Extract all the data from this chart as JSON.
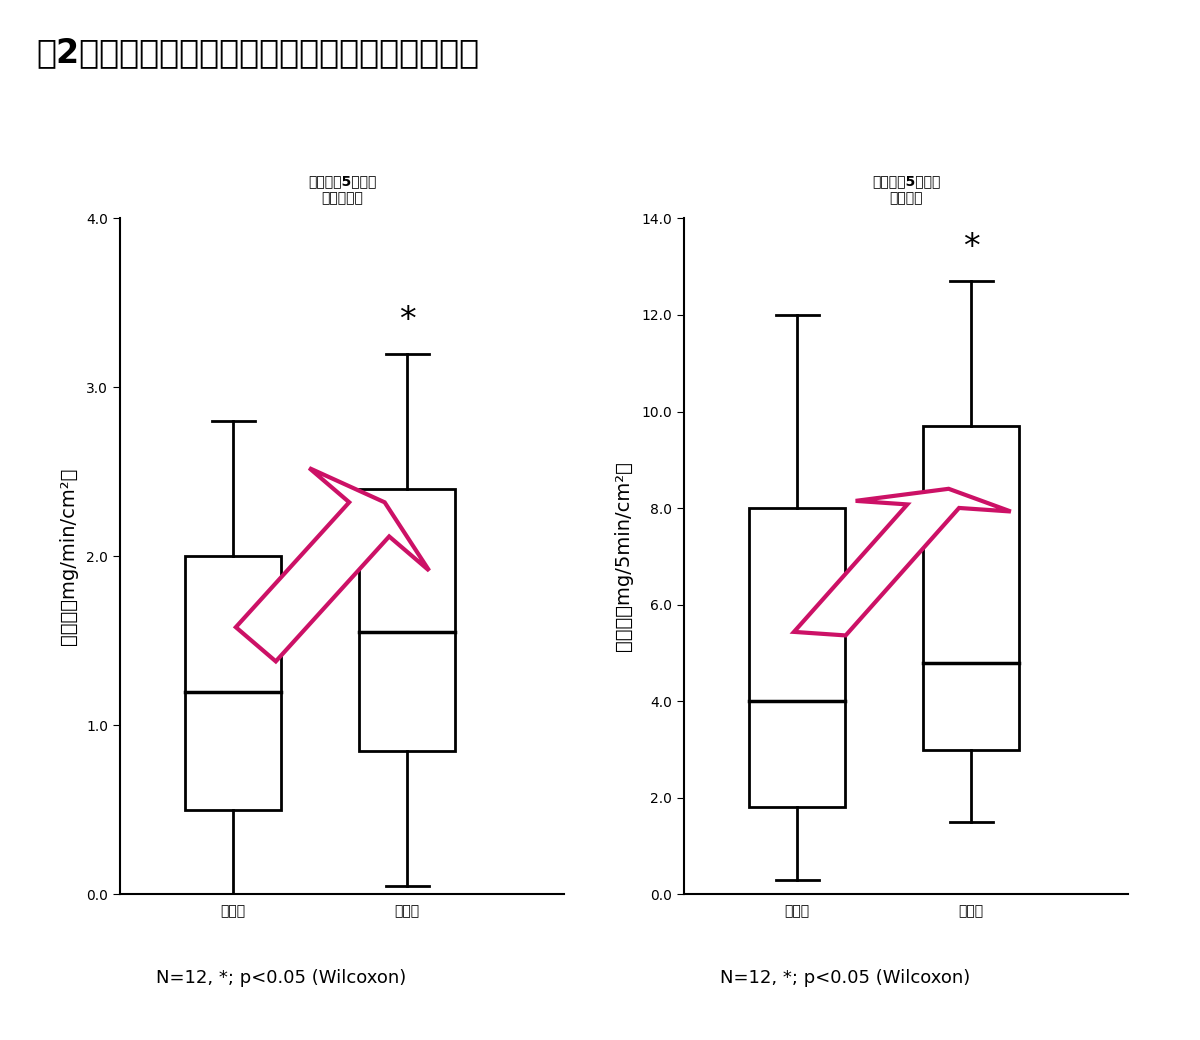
{
  "title": "図2　運動（歩行）終了前後のワキ発汗量の比較",
  "left_title_line1": "歩行前後5分間の",
  "left_title_line2": "最大発汗量",
  "right_title_line1": "歩行前後5分間の",
  "right_title_line2": "総発汗量",
  "left_ylabel": "発汗量（mg/min/cm²）",
  "right_ylabel": "発汗量（mg/5min/cm²）",
  "left_categories": [
    "歩行中",
    "歩行後"
  ],
  "right_categories": [
    "歩行中",
    "歩行後"
  ],
  "left_box1": {
    "whisker_low": 0.0,
    "q1": 0.5,
    "median": 1.2,
    "q3": 2.0,
    "whisker_high": 2.8
  },
  "left_box2": {
    "whisker_low": 0.05,
    "q1": 0.85,
    "median": 1.55,
    "q3": 2.4,
    "whisker_high": 3.2
  },
  "right_box1": {
    "whisker_low": 0.3,
    "q1": 1.8,
    "median": 4.0,
    "q3": 8.0,
    "whisker_high": 12.0
  },
  "right_box2": {
    "whisker_low": 1.5,
    "q1": 3.0,
    "median": 4.8,
    "q3": 9.7,
    "whisker_high": 12.7
  },
  "left_ylim": [
    0.0,
    4.0
  ],
  "right_ylim": [
    0.0,
    14.0
  ],
  "left_yticks": [
    0.0,
    1.0,
    2.0,
    3.0,
    4.0
  ],
  "right_yticks": [
    0.0,
    2.0,
    4.0,
    6.0,
    8.0,
    10.0,
    12.0,
    14.0
  ],
  "footnote": "N=12, *; p<0.05 (Wilcoxon)",
  "arrow_color": "#CC1166",
  "box_color": "#FFFFFF",
  "box_edge_color": "#000000",
  "background_color": "#FFFFFF",
  "title_fontsize": 24,
  "subtitle_fontsize": 20,
  "tick_fontsize": 15,
  "label_fontsize": 14,
  "category_fontsize": 20,
  "footnote_fontsize": 13
}
